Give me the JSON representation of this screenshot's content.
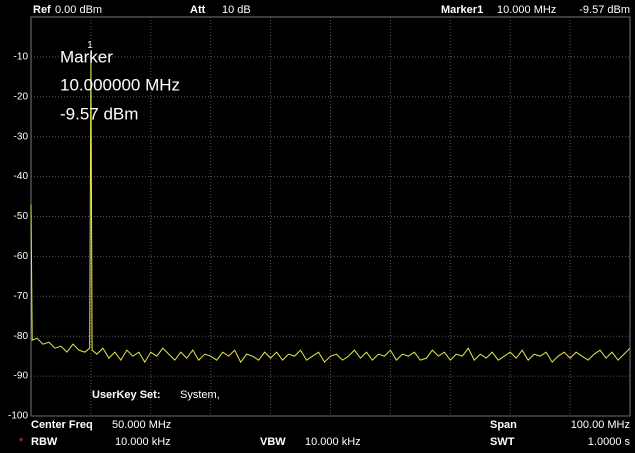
{
  "header": {
    "ref_label": "Ref",
    "ref_value": "0.00 dBm",
    "att_label": "Att",
    "att_value": "10 dB",
    "marker_label": "Marker1",
    "marker_freq": "10.000 MHz",
    "marker_level": "-9.57 dBm"
  },
  "marker": {
    "id": "1",
    "title": "Marker",
    "freq": "10.000000 MHz",
    "level": "-9.57 dBm"
  },
  "userkey": {
    "label": "UserKey Set:",
    "value": "System,"
  },
  "footer": {
    "center_label": "Center Freq",
    "center_value": "50.000 MHz",
    "span_label": "Span",
    "span_value": "100.00 MHz",
    "rbw_flag": "*",
    "rbw_label": "RBW",
    "rbw_value": "10.000 kHz",
    "vbw_label": "VBW",
    "vbw_value": "10.000 kHz",
    "swt_label": "SWT",
    "swt_value": "1.0000 s"
  },
  "chart_data": {
    "type": "line",
    "xlim": [
      0,
      100
    ],
    "ylim": [
      -100,
      0
    ],
    "yticks": [
      -10,
      -20,
      -30,
      -40,
      -50,
      -60,
      -70,
      -80,
      -90,
      -100
    ],
    "grid": true,
    "x": [
      0,
      0.2,
      1,
      2,
      3,
      4,
      5,
      6,
      7,
      8,
      9,
      9.8,
      10,
      10.2,
      11,
      12,
      13,
      14,
      15,
      16,
      17,
      18,
      19,
      20,
      21,
      22,
      23,
      24,
      25,
      26,
      27,
      28,
      29,
      30,
      31,
      32,
      33,
      34,
      35,
      36,
      37,
      38,
      39,
      40,
      41,
      42,
      43,
      44,
      45,
      46,
      47,
      48,
      49,
      50,
      51,
      52,
      53,
      54,
      55,
      56,
      57,
      58,
      59,
      60,
      61,
      62,
      63,
      64,
      65,
      66,
      67,
      68,
      69,
      70,
      71,
      72,
      73,
      74,
      75,
      76,
      77,
      78,
      79,
      80,
      81,
      82,
      83,
      84,
      85,
      86,
      87,
      88,
      89,
      90,
      91,
      92,
      93,
      94,
      95,
      96,
      97,
      98,
      99,
      100
    ],
    "series": [
      {
        "color": "#e6e64c",
        "values": [
          -47,
          -81,
          -80.5,
          -82,
          -81.5,
          -83,
          -82.5,
          -84,
          -82,
          -83.5,
          -84,
          -83,
          -9.57,
          -83.5,
          -84.5,
          -83,
          -85.5,
          -84,
          -86,
          -83.5,
          -85,
          -84,
          -86.5,
          -84,
          -85,
          -83,
          -84.5,
          -86,
          -84,
          -85.5,
          -83.5,
          -86,
          -84.5,
          -85,
          -86,
          -84,
          -85,
          -83.5,
          -86.5,
          -84.5,
          -85,
          -86,
          -84,
          -85.5,
          -84,
          -86,
          -84.5,
          -85,
          -83.5,
          -86,
          -85,
          -84,
          -86.5,
          -85,
          -84.5,
          -86,
          -85,
          -83.5,
          -85.5,
          -84,
          -86,
          -84.5,
          -85,
          -83.5,
          -86,
          -84.5,
          -85,
          -84,
          -86,
          -85.5,
          -83.5,
          -85,
          -84,
          -86,
          -84.5,
          -85,
          -83,
          -86,
          -84.5,
          -85.5,
          -84,
          -86,
          -85,
          -84,
          -85.5,
          -83.5,
          -86,
          -84.5,
          -85,
          -84,
          -86.5,
          -85,
          -84,
          -85.5,
          -84,
          -85,
          -86,
          -84.5,
          -83.5,
          -85.5,
          -84,
          -86,
          -84.5,
          -83
        ]
      }
    ]
  }
}
